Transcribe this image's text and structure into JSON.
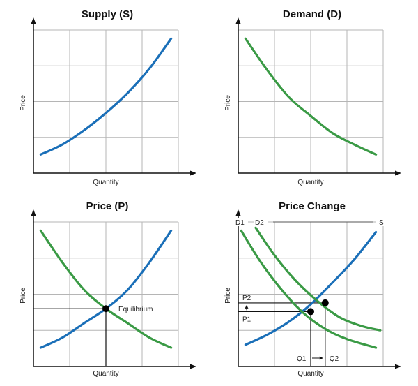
{
  "figure": {
    "colors": {
      "supply": "#1a6fb8",
      "demand": "#3a9a45",
      "grid": "#b5b5b5",
      "axis": "#111111",
      "guide": "#111111"
    }
  },
  "chart_data": [
    {
      "type": "line",
      "title": "Supply (S)",
      "xlabel": "Quantity",
      "ylabel": "Price",
      "grid": true,
      "axis_ticks": false,
      "series": [
        {
          "role": "supply",
          "color": "#1a6fb8",
          "points": [
            [
              0.05,
              0.13
            ],
            [
              0.2,
              0.2
            ],
            [
              0.35,
              0.3
            ],
            [
              0.5,
              0.42
            ],
            [
              0.65,
              0.56
            ],
            [
              0.8,
              0.73
            ],
            [
              0.95,
              0.94
            ]
          ]
        }
      ]
    },
    {
      "type": "line",
      "title": "Demand (D)",
      "xlabel": "Quantity",
      "ylabel": "Price",
      "grid": true,
      "axis_ticks": false,
      "series": [
        {
          "role": "demand",
          "color": "#3a9a45",
          "points": [
            [
              0.05,
              0.94
            ],
            [
              0.2,
              0.72
            ],
            [
              0.35,
              0.53
            ],
            [
              0.5,
              0.4
            ],
            [
              0.65,
              0.28
            ],
            [
              0.8,
              0.2
            ],
            [
              0.95,
              0.13
            ]
          ]
        }
      ]
    },
    {
      "type": "line",
      "title": "Price (P)",
      "xlabel": "Quantity",
      "ylabel": "Price",
      "grid": true,
      "axis_ticks": false,
      "series": [
        {
          "role": "supply",
          "color": "#1a6fb8",
          "points": [
            [
              0.05,
              0.13
            ],
            [
              0.2,
              0.2
            ],
            [
              0.35,
              0.3
            ],
            [
              0.5,
              0.4
            ],
            [
              0.65,
              0.53
            ],
            [
              0.8,
              0.72
            ],
            [
              0.95,
              0.94
            ]
          ]
        },
        {
          "role": "demand",
          "color": "#3a9a45",
          "points": [
            [
              0.05,
              0.94
            ],
            [
              0.2,
              0.72
            ],
            [
              0.35,
              0.53
            ],
            [
              0.5,
              0.4
            ],
            [
              0.65,
              0.3
            ],
            [
              0.8,
              0.2
            ],
            [
              0.95,
              0.13
            ]
          ]
        }
      ],
      "points": [
        {
          "label": "Equilibrium",
          "x": 0.5,
          "y": 0.4
        }
      ]
    },
    {
      "type": "line",
      "title": "Price Change",
      "xlabel": "Quantity",
      "ylabel": "Price",
      "grid": true,
      "axis_ticks": false,
      "series": [
        {
          "name": "S",
          "role": "supply",
          "color": "#1a6fb8",
          "points": [
            [
              0.05,
              0.15
            ],
            [
              0.2,
              0.22
            ],
            [
              0.35,
              0.31
            ],
            [
              0.5,
              0.43
            ],
            [
              0.65,
              0.58
            ],
            [
              0.8,
              0.74
            ],
            [
              0.95,
              0.93
            ]
          ]
        },
        {
          "name": "D1",
          "role": "demand",
          "color": "#3a9a45",
          "points": [
            [
              0.02,
              0.94
            ],
            [
              0.15,
              0.73
            ],
            [
              0.3,
              0.53
            ],
            [
              0.45,
              0.37
            ],
            [
              0.6,
              0.26
            ],
            [
              0.75,
              0.19
            ],
            [
              0.95,
              0.13
            ]
          ]
        },
        {
          "name": "D2",
          "role": "demand",
          "color": "#3a9a45",
          "points": [
            [
              0.12,
              0.96
            ],
            [
              0.25,
              0.77
            ],
            [
              0.4,
              0.59
            ],
            [
              0.55,
              0.45
            ],
            [
              0.7,
              0.34
            ],
            [
              0.85,
              0.28
            ],
            [
              0.98,
              0.25
            ]
          ]
        }
      ],
      "points": [
        {
          "x": 0.5,
          "y": 0.38
        },
        {
          "x": 0.6,
          "y": 0.44
        }
      ],
      "annotations": {
        "p1": "P1",
        "p2": "P2",
        "q1": "Q1",
        "q2": "Q2",
        "d1": "D1",
        "d2": "D2",
        "s": "S"
      }
    }
  ]
}
